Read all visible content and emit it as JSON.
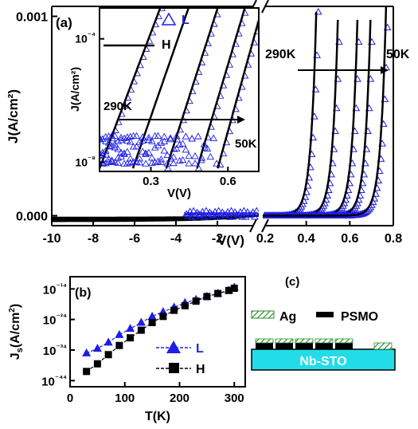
{
  "colors": {
    "L": "#1e1ee6",
    "H": "#000000",
    "substrate": "#22dde8",
    "ag_hatch": "#2e8b2e"
  },
  "chart_data": [
    {
      "panel": "(a)",
      "type": "line",
      "xlabel": "V(V)",
      "ylabel": "J(A/cm²)",
      "left_x_ticks": [
        "-10",
        "-8",
        "-6",
        "-4",
        "-2",
        "0.2"
      ],
      "right_x_ticks": [
        "0.4",
        "0.6",
        "0.8"
      ],
      "y_ticks": [
        "0.000",
        "0.001"
      ],
      "temps": [
        "290K",
        "50K"
      ],
      "xlim_left": [
        -10,
        0
      ],
      "xlim_right": [
        0.2,
        0.8
      ],
      "ylim": [
        -5e-05,
        0.00105
      ],
      "turn_on_voltages": [
        0.38,
        0.48,
        0.57,
        0.63,
        0.7
      ],
      "series": [
        {
          "name": "L",
          "marker": "open-triangle"
        },
        {
          "name": "H",
          "marker": "line"
        }
      ],
      "inset": {
        "xlabel": "V(V)",
        "ylabel": "J(A/cm²)",
        "x_ticks": [
          "0.3",
          "0.6"
        ],
        "xlim": [
          0.1,
          0.72
        ],
        "y_ticks": [
          "10⁻⁴",
          "10⁻⁸"
        ],
        "ylim_log10": [
          -8.3,
          -3
        ],
        "legend": [
          "L",
          "H"
        ],
        "temps": [
          "290K",
          "50K"
        ],
        "onset_voltages": [
          0.1,
          0.23,
          0.36,
          0.48,
          0.56
        ]
      }
    },
    {
      "panel": "(b)",
      "type": "scatter",
      "xlabel": "T(K)",
      "ylabel": "Js(A/cm²)",
      "x_ticks": [
        "0",
        "100",
        "200",
        "300"
      ],
      "y_ticks": [
        "10⁻¹⁴",
        "10⁻²⁴",
        "10⁻³⁴",
        "10⁻⁴⁴"
      ],
      "xlim": [
        0,
        320
      ],
      "ylim_log10": [
        -46,
        -10
      ],
      "series": [
        {
          "name": "L",
          "x": [
            30,
            50,
            70,
            90,
            110,
            130,
            150,
            170,
            190,
            210,
            230,
            250,
            270,
            290,
            300
          ],
          "log10_y": [
            -35,
            -33.5,
            -31.5,
            -29,
            -27,
            -25,
            -23,
            -21.5,
            -20,
            -18.5,
            -17.5,
            -16.5,
            -15.5,
            -14.5,
            -13.5
          ]
        },
        {
          "name": "H",
          "x": [
            30,
            50,
            70,
            90,
            110,
            130,
            150,
            170,
            190,
            210,
            230,
            250,
            270,
            290,
            300
          ],
          "log10_y": [
            -41,
            -38.5,
            -35.5,
            -32.5,
            -30,
            -27.5,
            -25,
            -23,
            -21,
            -19.5,
            -18,
            -16.5,
            -15.5,
            -14.5,
            -13.8
          ]
        }
      ]
    },
    {
      "panel": "(c)",
      "type": "diagram",
      "legend": [
        "Ag",
        "PSMO"
      ],
      "substrate": "Nb-STO"
    }
  ]
}
